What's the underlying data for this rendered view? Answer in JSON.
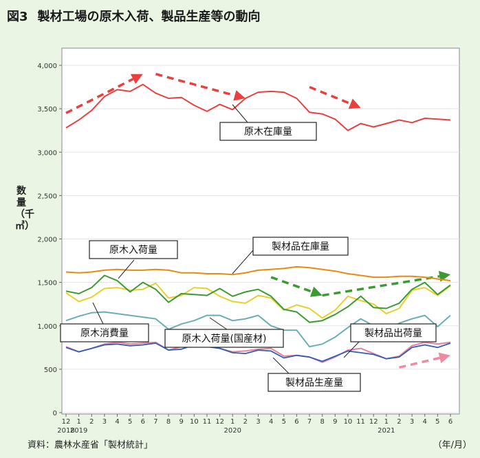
{
  "title": {
    "fig_label": "図3",
    "text": "製材工場の原木入荷、製品生産等の動向"
  },
  "source": "資料：農林水産省「製材統計」",
  "unit_note": "（年/月）",
  "colors": {
    "background": "#eaf5e4",
    "plot_bg": "#ffffff",
    "log_inventory": "#e8403f",
    "lumber_inventory": "#ec8a10",
    "log_arrivals": "#3c9a32",
    "log_consumption": "#e8cf2a",
    "domestic_log_arrivals": "#6aaeb4",
    "lumber_shipments": "#e77fa0",
    "lumber_production": "#2f5fae"
  },
  "chart_data": {
    "type": "line",
    "title": "製材工場の原木入荷、製品生産等の動向",
    "ylabel": "数量（千㎥）",
    "xlabel": "（年/月）",
    "ylim": [
      0,
      4000
    ],
    "yticks": [
      "0",
      "500",
      "1,000",
      "1,500",
      "2,000",
      "2,500",
      "3,000",
      "3,500",
      "4,000"
    ],
    "categories": [
      "12",
      "1",
      "2",
      "3",
      "4",
      "5",
      "6",
      "7",
      "8",
      "9",
      "10",
      "11",
      "12",
      "1",
      "2",
      "3",
      "4",
      "5",
      "6",
      "7",
      "8",
      "9",
      "10",
      "11",
      "12",
      "1",
      "2",
      "3",
      "4",
      "5",
      "6"
    ],
    "year_labels": [
      {
        "text": "2018",
        "index": 0
      },
      {
        "text": "2019",
        "index": 1
      },
      {
        "text": "2020",
        "index": 13
      },
      {
        "text": "2021",
        "index": 25
      }
    ],
    "series": [
      {
        "key": "log_inventory",
        "name": "原木在庫量",
        "color": "#e8403f",
        "values": [
          3280,
          3370,
          3480,
          3640,
          3720,
          3700,
          3780,
          3680,
          3620,
          3630,
          3540,
          3470,
          3550,
          3490,
          3620,
          3690,
          3700,
          3690,
          3620,
          3460,
          3440,
          3380,
          3250,
          3330,
          3290,
          3330,
          3370,
          3340,
          3390,
          3380,
          3370
        ]
      },
      {
        "key": "lumber_inventory",
        "name": "製材品在庫量",
        "color": "#ec8a10",
        "values": [
          1620,
          1610,
          1620,
          1640,
          1650,
          1640,
          1640,
          1650,
          1640,
          1610,
          1610,
          1600,
          1600,
          1590,
          1610,
          1640,
          1650,
          1660,
          1680,
          1670,
          1650,
          1630,
          1600,
          1580,
          1560,
          1560,
          1570,
          1570,
          1560,
          1540,
          1520
        ]
      },
      {
        "key": "log_arrivals",
        "name": "原木入荷量",
        "color": "#3c9a32",
        "values": [
          1400,
          1370,
          1440,
          1580,
          1520,
          1390,
          1500,
          1420,
          1270,
          1370,
          1360,
          1350,
          1430,
          1340,
          1390,
          1420,
          1340,
          1190,
          1160,
          1040,
          1060,
          1130,
          1220,
          1340,
          1210,
          1200,
          1260,
          1420,
          1500,
          1360,
          1470
        ]
      },
      {
        "key": "log_consumption",
        "name": "原木消費量",
        "color": "#e8cf2a",
        "values": [
          1380,
          1280,
          1330,
          1430,
          1440,
          1410,
          1420,
          1490,
          1320,
          1350,
          1440,
          1430,
          1340,
          1280,
          1260,
          1350,
          1320,
          1180,
          1240,
          1200,
          1090,
          1180,
          1340,
          1290,
          1250,
          1140,
          1200,
          1410,
          1440,
          1350,
          1460
        ]
      },
      {
        "key": "domestic_log_arrivals",
        "name": "原木入荷量（国産材）",
        "color": "#6aaeb4",
        "values": [
          1060,
          1110,
          1150,
          1160,
          1140,
          1120,
          1100,
          1080,
          960,
          1020,
          1060,
          1120,
          1120,
          1060,
          1080,
          1120,
          1000,
          950,
          950,
          760,
          790,
          870,
          980,
          1080,
          1000,
          950,
          1030,
          1080,
          1120,
          990,
          1120
        ]
      },
      {
        "key": "lumber_shipments",
        "name": "製材品出荷量",
        "color": "#e77fa0",
        "values": [
          760,
          700,
          740,
          790,
          810,
          790,
          800,
          810,
          720,
          760,
          790,
          770,
          740,
          700,
          710,
          730,
          740,
          650,
          660,
          640,
          580,
          640,
          720,
          740,
          680,
          620,
          650,
          770,
          810,
          790,
          810
        ]
      },
      {
        "key": "lumber_production",
        "name": "製材品生産量",
        "color": "#2f5fae",
        "values": [
          750,
          700,
          740,
          780,
          790,
          770,
          780,
          800,
          720,
          730,
          780,
          760,
          740,
          690,
          680,
          720,
          710,
          630,
          660,
          640,
          590,
          650,
          710,
          690,
          670,
          620,
          640,
          750,
          780,
          750,
          800
        ]
      }
    ],
    "annotations": [
      {
        "key": "log_inventory",
        "label": "原木在庫量"
      },
      {
        "key": "lumber_inventory",
        "label": "製材品在庫量"
      },
      {
        "key": "log_arrivals",
        "label": "原木入荷量"
      },
      {
        "key": "log_consumption",
        "label": "原木消費量"
      },
      {
        "key": "domestic_log_arrivals",
        "label": "原木入荷量(国産材)"
      },
      {
        "key": "lumber_shipments",
        "label": "製材品出荷量"
      },
      {
        "key": "lumber_production",
        "label": "製材品生産量"
      }
    ],
    "trend_arrows": [
      {
        "color": "#e8403f",
        "from": [
          0,
          3450
        ],
        "to": [
          6,
          3900
        ]
      },
      {
        "color": "#e8403f",
        "from": [
          7,
          3900
        ],
        "to": [
          14,
          3620
        ]
      },
      {
        "color": "#e8403f",
        "from": [
          19,
          3750
        ],
        "to": [
          23,
          3510
        ]
      },
      {
        "color": "#3c9a32",
        "from": [
          16,
          1560
        ],
        "to": [
          20,
          1350
        ]
      },
      {
        "color": "#3c9a32",
        "from": [
          20,
          1350
        ],
        "to": [
          30,
          1590
        ]
      },
      {
        "color": "#f08aa0",
        "from": [
          26,
          520
        ],
        "to": [
          30,
          660
        ]
      }
    ]
  }
}
